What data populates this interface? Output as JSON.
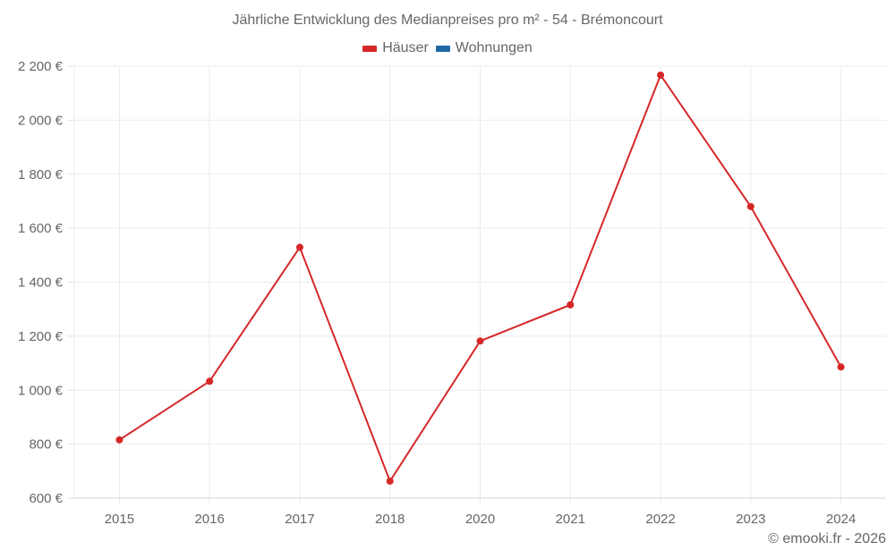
{
  "chart_data": {
    "type": "line",
    "title": "Jährliche Entwicklung des Medianpreises pro m² - 54 - Brémoncourt",
    "xlabel": "",
    "ylabel": "",
    "categories": [
      "2015",
      "2016",
      "2017",
      "2018",
      "2020",
      "2021",
      "2022",
      "2023",
      "2024"
    ],
    "series": [
      {
        "name": "Häuser",
        "color": "#d62728",
        "values": [
          816,
          1033,
          1529,
          663,
          1182,
          1316,
          2167,
          1680,
          1086
        ]
      },
      {
        "name": "Wohnungen",
        "color": "#1f69a6",
        "values": []
      }
    ],
    "ylim": [
      600,
      2200
    ],
    "yticks": [
      600,
      800,
      1000,
      1200,
      1400,
      1600,
      1800,
      2000,
      2200
    ],
    "ytick_labels": [
      "600 €",
      "800 €",
      "1 000 €",
      "1 200 €",
      "1 400 €",
      "1 600 €",
      "1 800 €",
      "2 000 €",
      "2 200 €"
    ],
    "grid": true,
    "legend_position": "top-center"
  },
  "title": "Jährliche Entwicklung des Medianpreises pro m² - 54 - Brémoncourt",
  "legend": [
    {
      "label": "Häuser",
      "color": "#d62728"
    },
    {
      "label": "Wohnungen",
      "color": "#1f69a6"
    }
  ],
  "credit": "© emooki.fr - 2026"
}
